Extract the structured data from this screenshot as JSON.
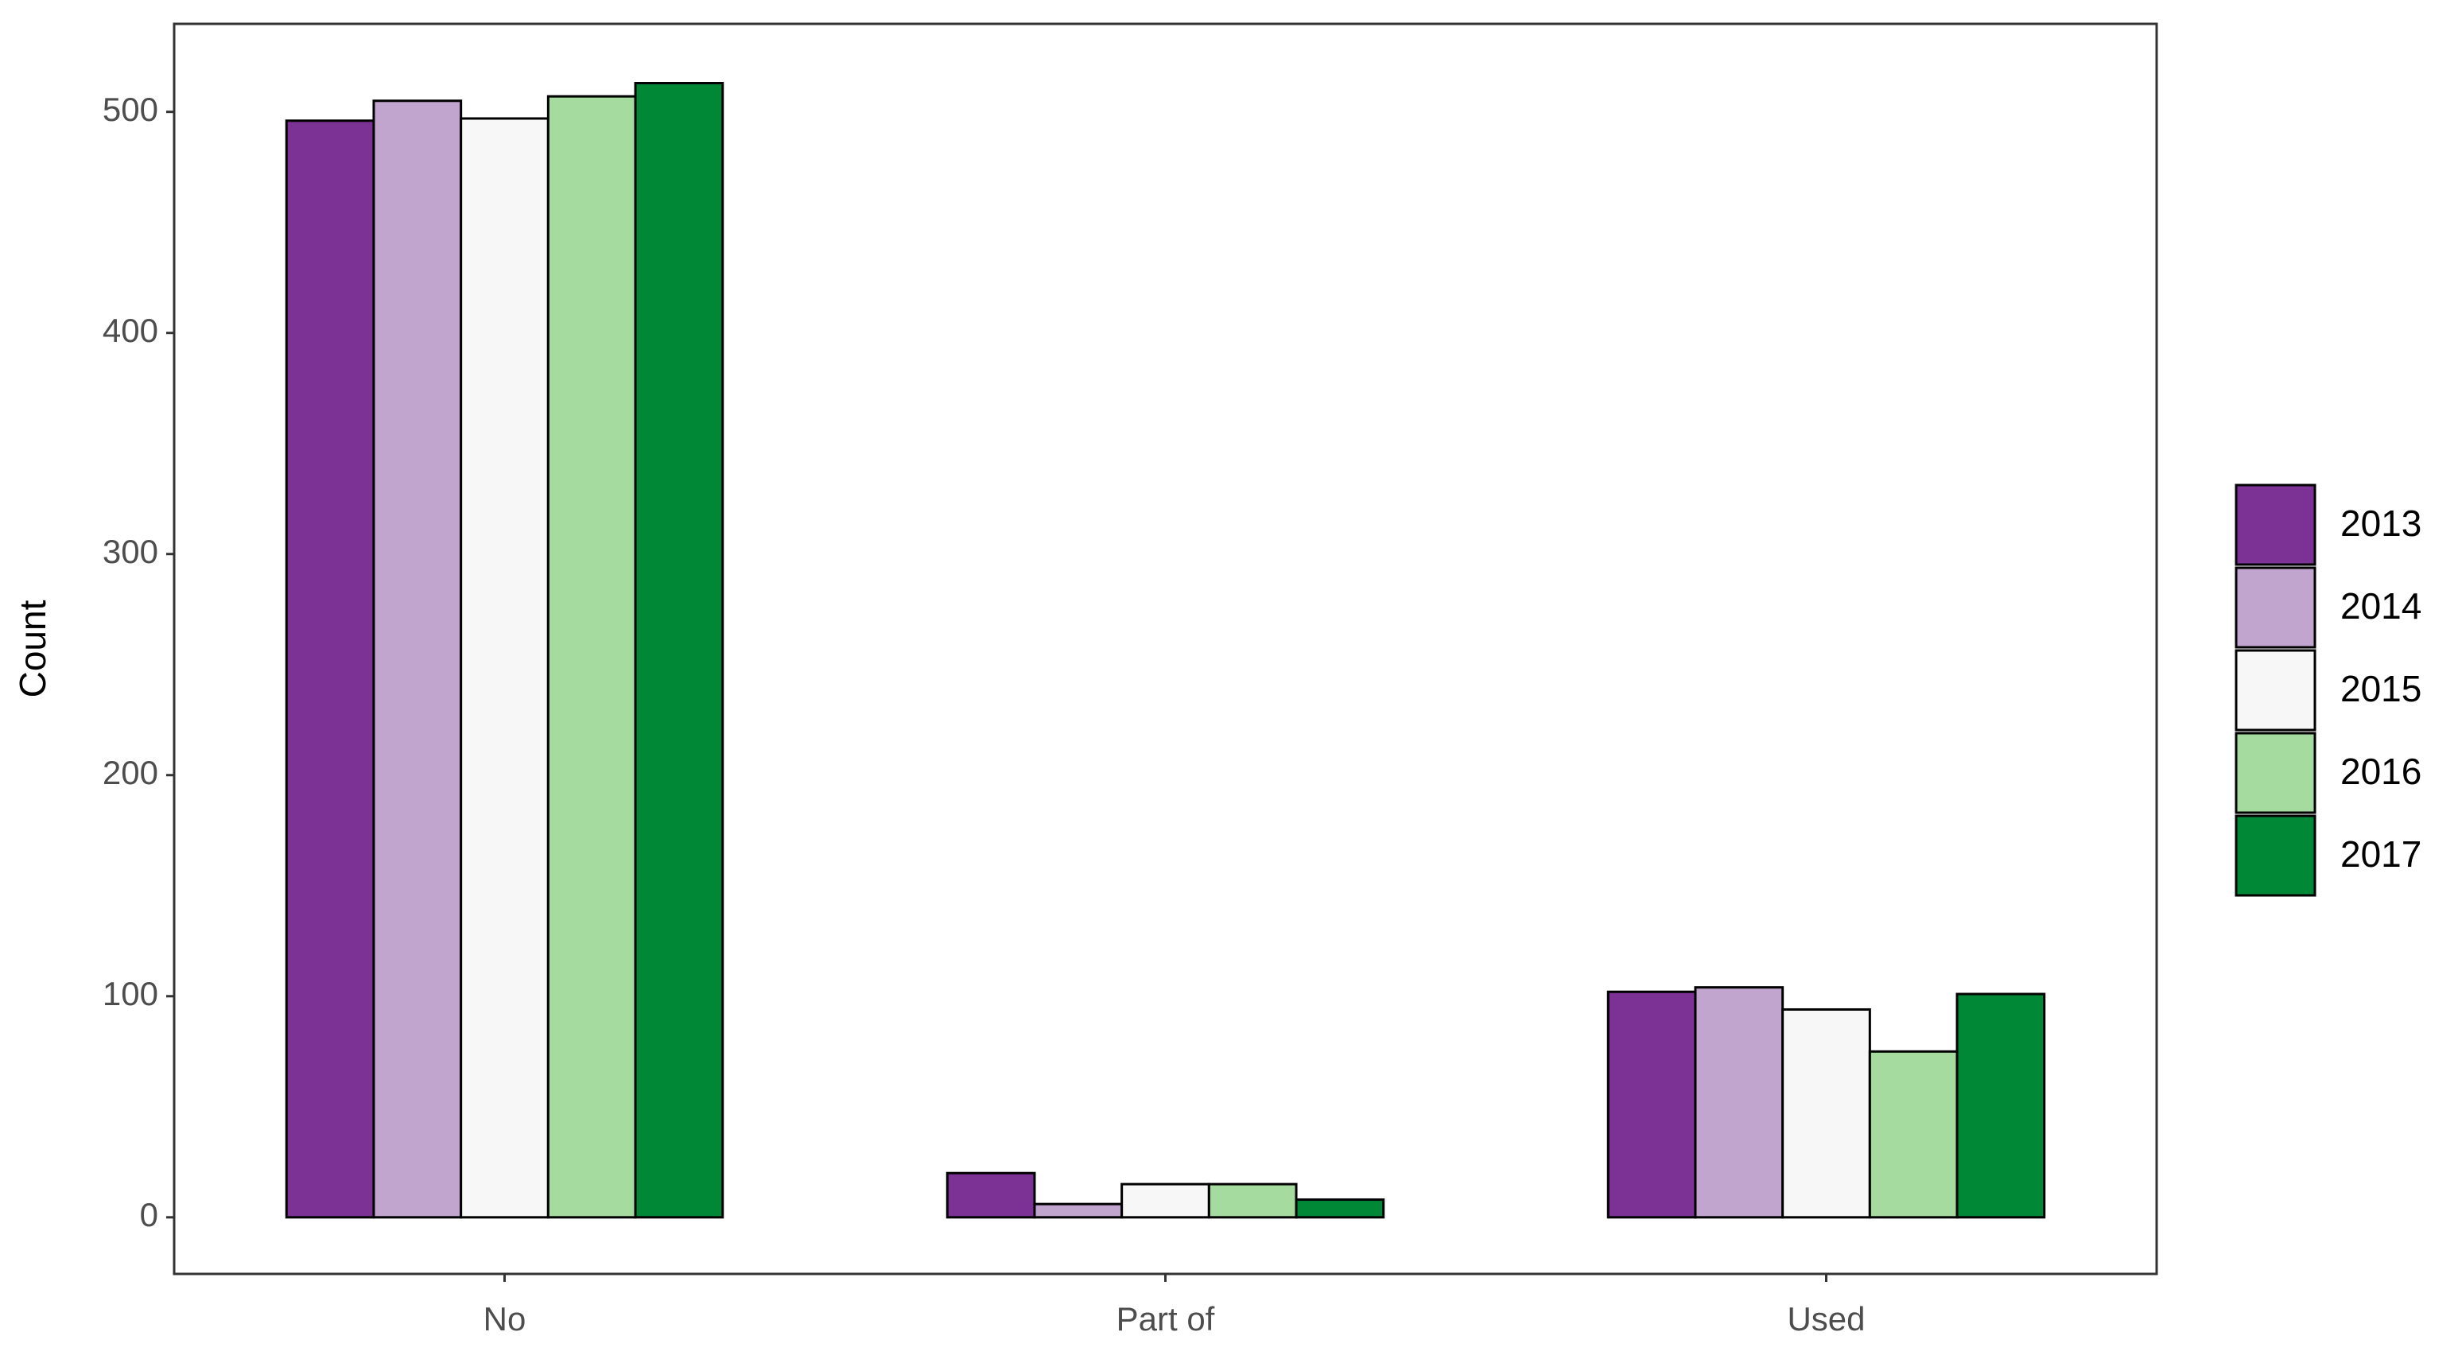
{
  "chart_data": {
    "type": "bar",
    "y_label": "Count",
    "categories": [
      "No",
      "Part of",
      "Used"
    ],
    "series": [
      {
        "name": "2013",
        "color": "#7b3294",
        "values": [
          496,
          20,
          102
        ]
      },
      {
        "name": "2014",
        "color": "#c2a5cf",
        "values": [
          505,
          6,
          104
        ]
      },
      {
        "name": "2015",
        "color": "#f7f7f7",
        "values": [
          497,
          15,
          94
        ]
      },
      {
        "name": "2016",
        "color": "#a6dba0",
        "values": [
          507,
          15,
          75
        ]
      },
      {
        "name": "2017",
        "color": "#008837",
        "values": [
          513,
          8,
          101
        ]
      }
    ],
    "ylim": [
      -25.6,
      539.8
    ],
    "yticks": [
      0,
      100,
      200,
      300,
      400,
      500
    ],
    "grid": false,
    "legend": "right"
  }
}
